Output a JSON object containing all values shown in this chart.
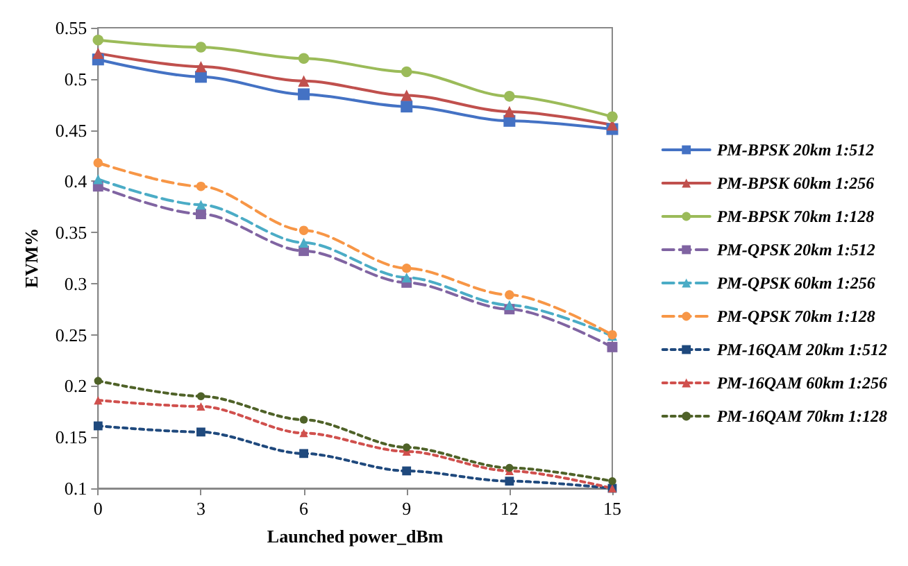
{
  "chart_data": {
    "type": "line",
    "xlabel": "Launched power_dBm",
    "ylabel": "EVM%",
    "x": [
      0,
      3,
      6,
      9,
      12,
      15
    ],
    "xlim": [
      0,
      15
    ],
    "xticks": [
      0,
      3,
      6,
      9,
      12,
      15
    ],
    "ylim": [
      0.1,
      0.55
    ],
    "yticks": [
      0.1,
      0.15,
      0.2,
      0.25,
      0.3,
      0.35,
      0.4,
      0.45,
      0.5,
      0.55
    ],
    "grid": false,
    "legend": "right",
    "series": [
      {
        "name": "PM-BPSK 20km 1:512",
        "color": "#4472c4",
        "marker": "square",
        "line_style": "solid",
        "values": [
          0.519,
          0.502,
          0.485,
          0.473,
          0.459,
          0.451
        ]
      },
      {
        "name": "PM-BPSK 60km 1:256",
        "color": "#c0504d",
        "marker": "triangle",
        "line_style": "solid",
        "values": [
          0.525,
          0.512,
          0.498,
          0.484,
          0.468,
          0.455
        ]
      },
      {
        "name": "PM-BPSK 70km 1:128",
        "color": "#9bbb59",
        "marker": "circle",
        "line_style": "solid",
        "values": [
          0.538,
          0.531,
          0.52,
          0.507,
          0.483,
          0.463
        ]
      },
      {
        "name": "PM-QPSK 20km 1:512",
        "color": "#8064a2",
        "marker": "square",
        "line_style": "dashed",
        "values": [
          0.395,
          0.368,
          0.332,
          0.301,
          0.275,
          0.238
        ]
      },
      {
        "name": "PM-QPSK 60km 1:256",
        "color": "#4bacc6",
        "marker": "triangle",
        "line_style": "dashed",
        "values": [
          0.402,
          0.377,
          0.34,
          0.306,
          0.279,
          0.249
        ]
      },
      {
        "name": "PM-QPSK 70km 1:128",
        "color": "#f79646",
        "marker": "circle",
        "line_style": "dashed",
        "values": [
          0.418,
          0.395,
          0.352,
          0.315,
          0.289,
          0.25
        ]
      },
      {
        "name": "PM-16QAM 20km 1:512",
        "color": "#1f497d",
        "marker": "square",
        "line_style": "dotted",
        "values": [
          0.161,
          0.155,
          0.134,
          0.117,
          0.107,
          0.1
        ]
      },
      {
        "name": "PM-16QAM 60km 1:256",
        "color": "#d0504d",
        "marker": "triangle",
        "line_style": "dotted",
        "values": [
          0.186,
          0.18,
          0.154,
          0.136,
          0.117,
          0.1
        ]
      },
      {
        "name": "PM-16QAM 70km 1:128",
        "color": "#4f6228",
        "marker": "circle",
        "line_style": "dotted",
        "values": [
          0.205,
          0.19,
          0.167,
          0.14,
          0.12,
          0.107
        ]
      }
    ]
  }
}
